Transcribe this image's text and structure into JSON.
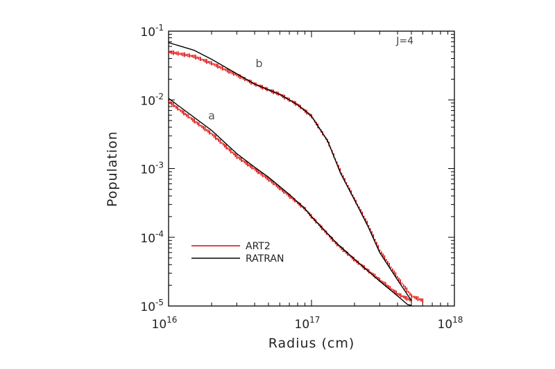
{
  "chart_data": {
    "type": "line",
    "title": "",
    "xlabel": "Radius (cm)",
    "ylabel": "Population",
    "xscale": "log",
    "yscale": "log",
    "xlim": [
      1e+16,
      1e+18
    ],
    "ylim": [
      1e-05,
      0.1
    ],
    "grid": false,
    "legend_position": "bottom-left",
    "x_ticks": [
      {
        "base": "10",
        "exp": "16",
        "value": 1e+16
      },
      {
        "base": "10",
        "exp": "17",
        "value": 1e+17
      },
      {
        "base": "10",
        "exp": "18",
        "value": 1e+18
      }
    ],
    "y_ticks": [
      {
        "base": "10",
        "exp": "-5",
        "value": 1e-05
      },
      {
        "base": "10",
        "exp": "-4",
        "value": 0.0001
      },
      {
        "base": "10",
        "exp": "-3",
        "value": 0.001
      },
      {
        "base": "10",
        "exp": "-2",
        "value": 0.01
      },
      {
        "base": "10",
        "exp": "-1",
        "value": 0.1
      }
    ],
    "annotations": [
      {
        "text": "J=4",
        "x": 4.5e+17,
        "y": 0.065
      },
      {
        "text": "b",
        "x": 4.3e+16,
        "y": 0.03
      },
      {
        "text": "a",
        "x": 2e+16,
        "y": 0.0052
      }
    ],
    "series": [
      {
        "name": "ART2",
        "color": "#dd0000",
        "style": "scatter-dashes",
        "curves": [
          {
            "label": "b",
            "x": [
              1e+16,
              1.5e+16,
              2e+16,
              3e+16,
              4e+16,
              5e+16,
              6e+16,
              7e+16,
              8e+16,
              1e+17,
              1.3e+17,
              1.6e+17,
              2e+17,
              2.5e+17,
              3e+17,
              4e+17,
              5e+17,
              6e+17
            ],
            "y": [
              0.05,
              0.043,
              0.034,
              0.023,
              0.017,
              0.014,
              0.012,
              0.01,
              0.0085,
              0.0058,
              0.0025,
              0.0009,
              0.00036,
              0.00015,
              6.5e-05,
              2.6e-05,
              1.4e-05,
              1.2e-05
            ]
          },
          {
            "label": "a",
            "x": [
              1e+16,
              1.5e+16,
              2e+16,
              3e+16,
              4e+16,
              5e+16,
              7e+16,
              9e+16,
              1e+17,
              1.5e+17,
              2e+17,
              3e+17,
              4e+17,
              5e+17
            ],
            "y": [
              0.0095,
              0.005,
              0.0032,
              0.0015,
              0.00098,
              0.0007,
              0.0004,
              0.00026,
              0.0002,
              8e-05,
              4.7e-05,
              2.4e-05,
              1.5e-05,
              1.2e-05
            ]
          }
        ]
      },
      {
        "name": "RATRAN",
        "color": "#000000",
        "style": "line",
        "curves": [
          {
            "label": "b",
            "x": [
              1e+16,
              1.5e+16,
              2e+16,
              3e+16,
              4e+16,
              5e+16,
              6e+16,
              7e+16,
              8e+16,
              1e+17,
              1.3e+17,
              1.6e+17,
              2e+17,
              2.5e+17,
              3e+17,
              4e+17,
              5e+17
            ],
            "y": [
              0.068,
              0.053,
              0.039,
              0.024,
              0.017,
              0.014,
              0.012,
              0.01,
              0.0085,
              0.0058,
              0.0025,
              0.00085,
              0.00035,
              0.00014,
              6e-05,
              2.4e-05,
              1.2e-05
            ]
          },
          {
            "label": "a",
            "x": [
              1e+16,
              1.5e+16,
              2e+16,
              3e+16,
              4e+16,
              5e+16,
              7e+16,
              9e+16,
              1e+17,
              1.5e+17,
              2e+17,
              3e+17,
              4e+17,
              4.7e+17,
              5e+17
            ],
            "y": [
              0.0105,
              0.0056,
              0.0036,
              0.00165,
              0.00105,
              0.00075,
              0.00042,
              0.00026,
              0.0002,
              8.2e-05,
              4.8e-05,
              2.3e-05,
              1.4e-05,
              1.05e-05,
              1.02e-05
            ]
          }
        ]
      }
    ]
  }
}
